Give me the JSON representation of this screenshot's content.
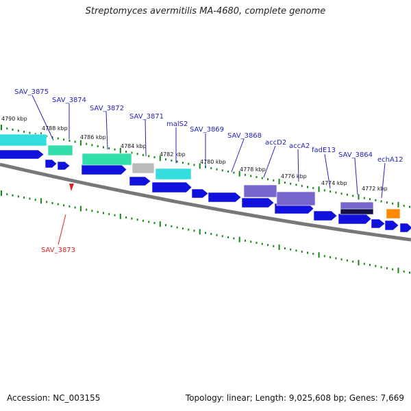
{
  "title": "Streptomyces avermitilis MA-4680, complete genome",
  "footer": {
    "accession": "Accession: NC_003155",
    "summary": "Topology: linear; Length: 9,025,608 bp; Genes: 7,669"
  },
  "colors": {
    "gene_blue": "#1111dd",
    "cyan": "#33dddd",
    "teal": "#33ddaa",
    "gray": "#bbbbbb",
    "purple": "#7766cc",
    "dark_navy": "#111144",
    "orange": "#ff8800",
    "tick_green": "#118811",
    "label_blue": "#2222bb",
    "label_red": "#dd2222",
    "backbone": "#777777"
  },
  "scale_labels": [
    "4790 kbp",
    "4788 kbp",
    "4786 kbp",
    "4784 kbp",
    "4782 kbp",
    "4780 kbp",
    "4778 kbp",
    "4776 kbp",
    "4774 kbp",
    "4772 kbp"
  ],
  "gene_labels": [
    {
      "text": "SAV_3875",
      "color": "blue"
    },
    {
      "text": "SAV_3874",
      "color": "blue"
    },
    {
      "text": "SAV_3872",
      "color": "blue"
    },
    {
      "text": "SAV_3871",
      "color": "blue"
    },
    {
      "text": "malS2",
      "color": "blue"
    },
    {
      "text": "SAV_3869",
      "color": "blue"
    },
    {
      "text": "SAV_3868",
      "color": "blue"
    },
    {
      "text": "accD2",
      "color": "blue"
    },
    {
      "text": "accA2",
      "color": "blue"
    },
    {
      "text": "fadE13",
      "color": "blue"
    },
    {
      "text": "SAV_3864",
      "color": "blue"
    },
    {
      "text": "echA12",
      "color": "blue"
    },
    {
      "text": "SAV_3873",
      "color": "red"
    }
  ]
}
